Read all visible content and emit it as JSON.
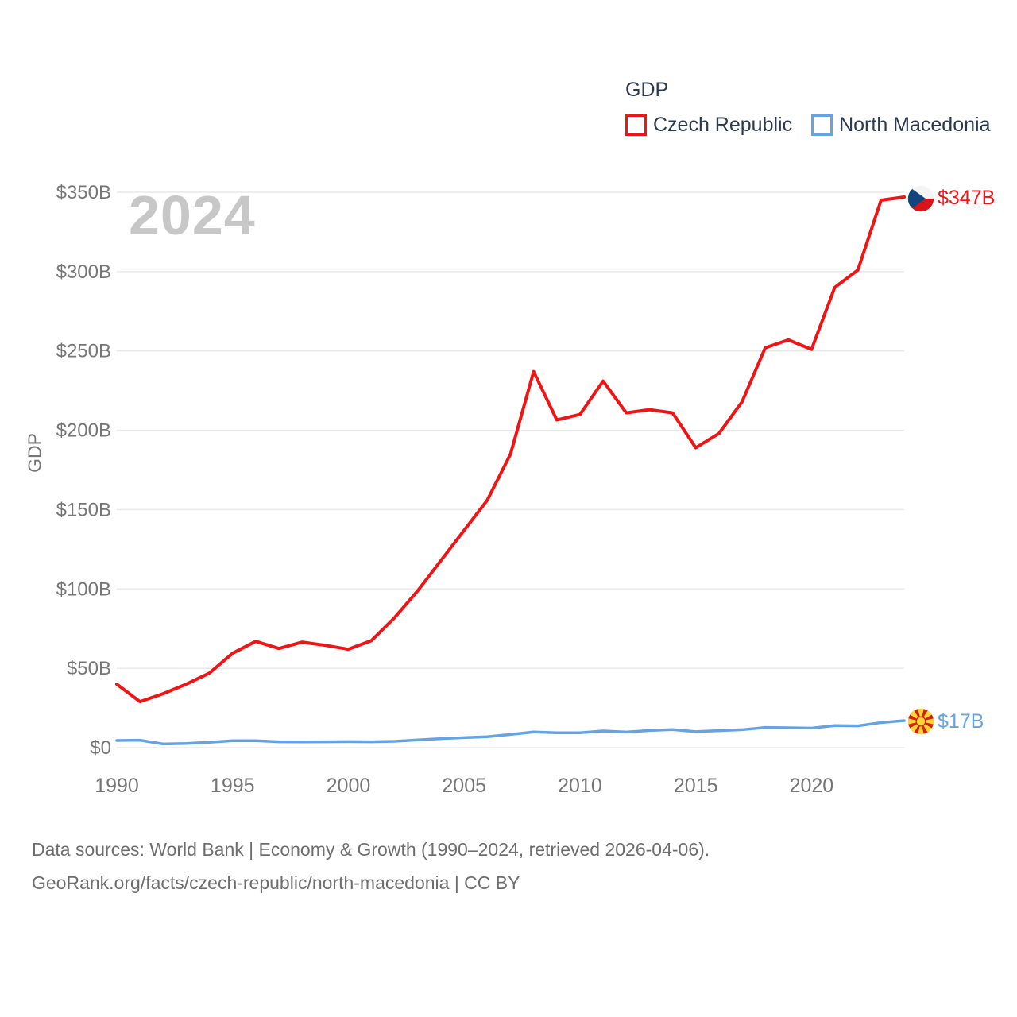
{
  "footer": {
    "line1": "Data sources: World Bank | Economy & Growth (1990–2024, retrieved 2026-04-06).",
    "line2": "GeoRank.org/facts/czech-republic/north-macedonia | CC BY"
  },
  "colors": {
    "czech_series": "#f01414",
    "macedonia_series": "#66a3e4",
    "legend_text": "#2b3a52",
    "tick_text": "#767676",
    "gridline": "#e9e9e9",
    "watermark": "#c7c7c7",
    "footer_text": "#6e6e6e"
  },
  "chart_data": {
    "type": "line",
    "title": "GDP",
    "ylabel": "GDP",
    "watermark_year": "2024",
    "legend_position": "top-right",
    "grid": "horizontal",
    "xlim": [
      1990,
      2024
    ],
    "ylim": [
      0,
      350
    ],
    "x": [
      1990,
      1991,
      1992,
      1993,
      1994,
      1995,
      1996,
      1997,
      1998,
      1999,
      2000,
      2001,
      2002,
      2003,
      2004,
      2005,
      2006,
      2007,
      2008,
      2009,
      2010,
      2011,
      2012,
      2013,
      2014,
      2015,
      2016,
      2017,
      2018,
      2019,
      2020,
      2021,
      2022,
      2023,
      2024
    ],
    "xticks": [
      1990,
      1995,
      2000,
      2005,
      2010,
      2015,
      2020
    ],
    "yticks": [
      {
        "value": 0,
        "label": "$0"
      },
      {
        "value": 50,
        "label": "$50B"
      },
      {
        "value": 100,
        "label": "$100B"
      },
      {
        "value": 150,
        "label": "$150B"
      },
      {
        "value": 200,
        "label": "$200B"
      },
      {
        "value": 250,
        "label": "$250B"
      },
      {
        "value": 300,
        "label": "$300B"
      },
      {
        "value": 350,
        "label": "$350B"
      }
    ],
    "series": [
      {
        "name": "Czech Republic",
        "color": "#f01414",
        "end_label": "$347B",
        "flag_icon": "czech-republic-flag-icon",
        "values": [
          40,
          29,
          34,
          40,
          47,
          59.5,
          67,
          62.5,
          66.5,
          64.5,
          62,
          67.5,
          82,
          99,
          118,
          137,
          156,
          185,
          237,
          206.5,
          210,
          231,
          211,
          213,
          211,
          189,
          198,
          218,
          252,
          257,
          251,
          290,
          301,
          345,
          347
        ]
      },
      {
        "name": "North Macedonia",
        "color": "#66a3e4",
        "end_label": "$17B",
        "flag_icon": "north-macedonia-flag-icon",
        "values": [
          4.5,
          4.7,
          2.3,
          2.6,
          3.4,
          4.4,
          4.4,
          3.7,
          3.6,
          3.7,
          3.8,
          3.7,
          4.0,
          4.9,
          5.7,
          6.3,
          6.9,
          8.3,
          9.9,
          9.4,
          9.4,
          10.5,
          9.8,
          10.8,
          11.4,
          10.1,
          10.7,
          11.3,
          12.7,
          12.5,
          12.3,
          13.9,
          13.7,
          15.8,
          17
        ]
      }
    ]
  }
}
